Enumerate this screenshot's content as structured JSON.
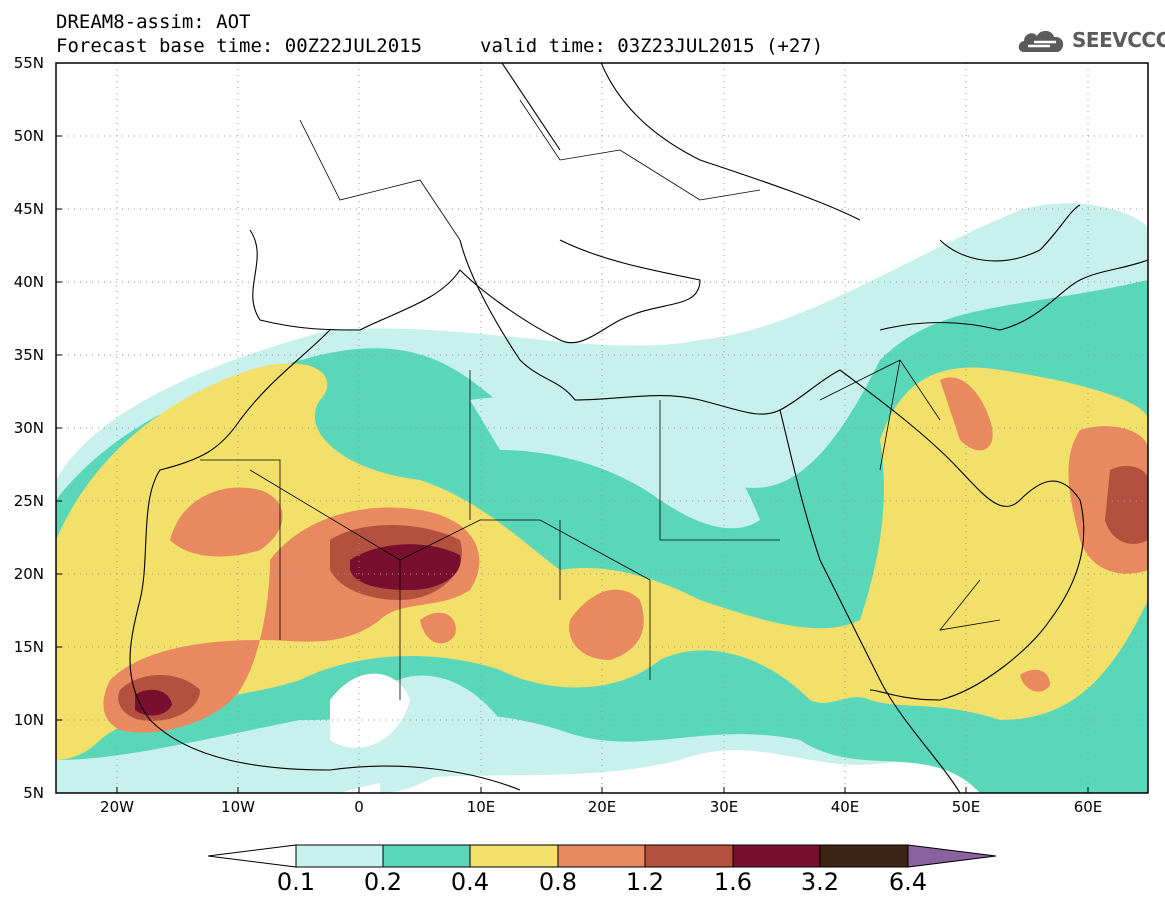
{
  "title": {
    "line1": "DREAM8-assim: AOT",
    "base_time": "Forecast base time: 00Z22JUL2015",
    "valid_time": "valid time: 03Z23JUL2015 (+27)"
  },
  "logo": {
    "text": "SEEVCCC",
    "icon": "cloud-icon"
  },
  "map": {
    "lat_labels": [
      "55N",
      "50N",
      "45N",
      "40N",
      "35N",
      "30N",
      "25N",
      "20N",
      "15N",
      "10N",
      "5N"
    ],
    "lon_labels": [
      "20W",
      "10W",
      "0",
      "10E",
      "20E",
      "30E",
      "40E",
      "50E",
      "60E"
    ],
    "lat_range": [
      5,
      55
    ],
    "lon_range": [
      -25,
      65
    ],
    "grid": "dotted"
  },
  "legend": {
    "labels": [
      "0.1",
      "0.2",
      "0.4",
      "0.8",
      "1.2",
      "1.6",
      "3.2",
      "6.4"
    ],
    "colors": [
      "#ffffff",
      "#c8f0ec",
      "#5ad7b9",
      "#f3e06a",
      "#e9895f",
      "#b4503e",
      "#7a0e2e",
      "#3c2414",
      "#8a62a0"
    ]
  }
}
